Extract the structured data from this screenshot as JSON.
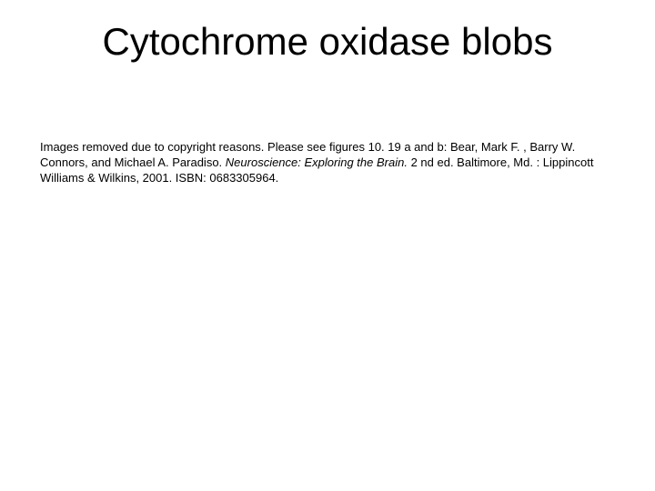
{
  "slide": {
    "title": "Cytochrome oxidase blobs",
    "notice_part1": "Images removed due to copyright reasons. Please see figures 10. 19 a and b: Bear, Mark F. , Barry W. Connors, and Michael A. Paradiso. ",
    "citation_title": "Neuroscience: Exploring the Brain.",
    "notice_part2": " 2 nd ed. Baltimore, Md. : Lippincott Williams & Wilkins, 2001. ISBN: 0683305964."
  },
  "style": {
    "background_color": "#ffffff",
    "text_color": "#000000",
    "title_fontsize": 42,
    "body_fontsize": 13,
    "font_family": "Arial"
  }
}
